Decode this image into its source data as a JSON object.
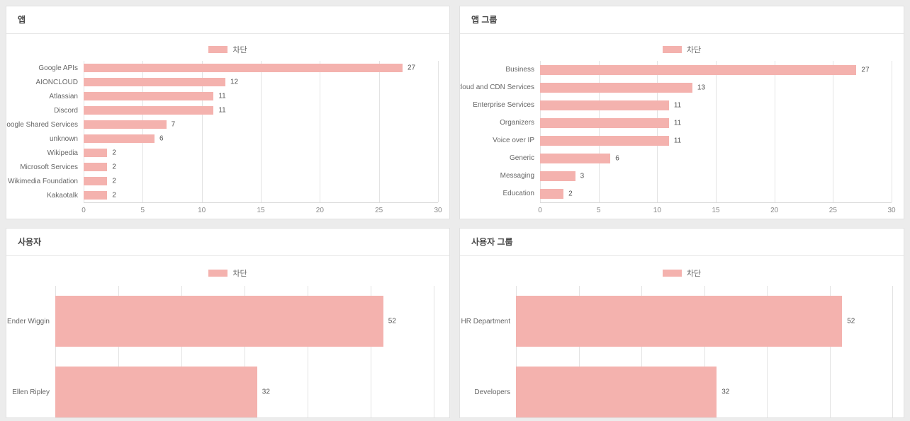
{
  "page": {
    "background_color": "#ececec",
    "accent_color": "#f4b2ae"
  },
  "cards": [
    {
      "title": "앱",
      "legend_label": "차단"
    },
    {
      "title": "앱 그룹",
      "legend_label": "차단"
    },
    {
      "title": "사용자",
      "legend_label": "차단"
    },
    {
      "title": "사용자 그룹",
      "legend_label": "차단"
    }
  ],
  "chart_data": [
    {
      "type": "bar",
      "orientation": "horizontal",
      "title": "앱",
      "categories": [
        "Google APIs",
        "AIONCLOUD",
        "Atlassian",
        "Discord",
        "Google Shared Services",
        "unknown",
        "Wikipedia",
        "Microsoft Services",
        "Wikimedia Foundation",
        "Kakaotalk"
      ],
      "series": [
        {
          "name": "차단",
          "values": [
            27,
            12,
            11,
            11,
            7,
            6,
            2,
            2,
            2,
            2
          ]
        }
      ],
      "xlim": [
        0,
        30
      ],
      "xticks": [
        0,
        5,
        10,
        15,
        20,
        25,
        30
      ],
      "x_tick_labels_visible": true,
      "grid": true,
      "legend_position": "top-center",
      "bar_color": "#f4b2ae"
    },
    {
      "type": "bar",
      "orientation": "horizontal",
      "title": "앱 그룹",
      "categories": [
        "Business",
        "Cloud and CDN Services",
        "Enterprise Services",
        "Organizers",
        "Voice over IP",
        "Generic",
        "Messaging",
        "Education"
      ],
      "series": [
        {
          "name": "차단",
          "values": [
            27,
            13,
            11,
            11,
            11,
            6,
            3,
            2
          ]
        }
      ],
      "xlim": [
        0,
        30
      ],
      "xticks": [
        0,
        5,
        10,
        15,
        20,
        25,
        30
      ],
      "x_tick_labels_visible": true,
      "grid": true,
      "legend_position": "top-center",
      "bar_color": "#f4b2ae"
    },
    {
      "type": "bar",
      "orientation": "horizontal",
      "title": "사용자",
      "categories": [
        "Ender Wiggin",
        "Ellen Ripley"
      ],
      "series": [
        {
          "name": "차단",
          "values": [
            52,
            32
          ]
        }
      ],
      "xlim": [
        0,
        60
      ],
      "xticks": [
        0,
        10,
        20,
        30,
        40,
        50,
        60
      ],
      "x_tick_labels_visible": false,
      "grid": true,
      "legend_position": "top-center",
      "bar_color": "#f4b2ae"
    },
    {
      "type": "bar",
      "orientation": "horizontal",
      "title": "사용자 그룹",
      "categories": [
        "HR Department",
        "Developers"
      ],
      "series": [
        {
          "name": "차단",
          "values": [
            52,
            32
          ]
        }
      ],
      "xlim": [
        0,
        60
      ],
      "xticks": [
        0,
        10,
        20,
        30,
        40,
        50,
        60
      ],
      "x_tick_labels_visible": false,
      "grid": true,
      "legend_position": "top-center",
      "bar_color": "#f4b2ae"
    }
  ]
}
